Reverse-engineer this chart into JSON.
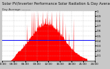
{
  "title": "Solar PV/Inverter Performance Solar Radiation & Day Average per Minute",
  "subtitle": "Day Average: ———",
  "bg_color": "#c8c8c8",
  "plot_bg_color": "#ffffff",
  "bar_color": "#ff0000",
  "avg_line_color": "#0000ff",
  "avg_value": 0.42,
  "ylim": [
    0,
    1.0
  ],
  "grid_color": "#aaaaaa",
  "title_fontsize": 3.8,
  "tick_fontsize": 3.0,
  "n_points": 300
}
